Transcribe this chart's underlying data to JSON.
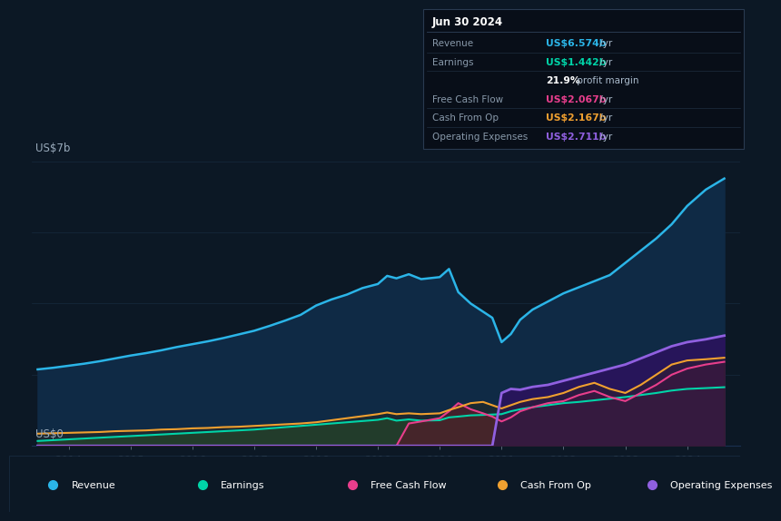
{
  "bg_color": "#0c1825",
  "plot_bg_color": "#0c1825",
  "grid_color": "#1a2e45",
  "title_y_label": "US$7b",
  "title_y_label_bottom": "US$0",
  "x_ticks": [
    2014,
    2015,
    2016,
    2017,
    2018,
    2019,
    2020,
    2021,
    2022,
    2023,
    2024
  ],
  "ylim": [
    0,
    7.5
  ],
  "xlim": [
    2013.4,
    2024.85
  ],
  "revenue_color": "#2bb5e8",
  "earnings_color": "#00d4a8",
  "fcf_color": "#e83e8c",
  "cashfromop_color": "#f0a030",
  "opex_color": "#9060e0",
  "legend": [
    {
      "label": "Revenue",
      "color": "#2bb5e8"
    },
    {
      "label": "Earnings",
      "color": "#00d4a8"
    },
    {
      "label": "Free Cash Flow",
      "color": "#e83e8c"
    },
    {
      "label": "Cash From Op",
      "color": "#f0a030"
    },
    {
      "label": "Operating Expenses",
      "color": "#9060e0"
    }
  ],
  "info_box": {
    "date": "Jun 30 2024",
    "rows": [
      {
        "label": "Revenue",
        "value": "US$6.574b",
        "suffix": " /yr",
        "color": "#2bb5e8"
      },
      {
        "label": "Earnings",
        "value": "US$1.442b",
        "suffix": " /yr",
        "color": "#00d4a8"
      },
      {
        "label": "",
        "value": "21.9%",
        "suffix": " profit margin",
        "color": "#ffffff"
      },
      {
        "label": "Free Cash Flow",
        "value": "US$2.067b",
        "suffix": " /yr",
        "color": "#e83e8c"
      },
      {
        "label": "Cash From Op",
        "value": "US$2.167b",
        "suffix": " /yr",
        "color": "#f0a030"
      },
      {
        "label": "Operating Expenses",
        "value": "US$2.711b",
        "suffix": " /yr",
        "color": "#9060e0"
      }
    ]
  },
  "years": [
    2013.5,
    2013.75,
    2014.0,
    2014.25,
    2014.5,
    2014.75,
    2015.0,
    2015.25,
    2015.5,
    2015.75,
    2016.0,
    2016.25,
    2016.5,
    2016.75,
    2017.0,
    2017.25,
    2017.5,
    2017.75,
    2018.0,
    2018.25,
    2018.5,
    2018.75,
    2019.0,
    2019.15,
    2019.3,
    2019.5,
    2019.7,
    2020.0,
    2020.15,
    2020.3,
    2020.5,
    2020.7,
    2020.85,
    2021.0,
    2021.15,
    2021.3,
    2021.5,
    2021.75,
    2022.0,
    2022.25,
    2022.5,
    2022.75,
    2023.0,
    2023.25,
    2023.5,
    2023.75,
    2024.0,
    2024.3,
    2024.6
  ],
  "revenue": [
    1.88,
    1.92,
    1.97,
    2.02,
    2.08,
    2.15,
    2.22,
    2.28,
    2.35,
    2.43,
    2.5,
    2.57,
    2.65,
    2.74,
    2.83,
    2.95,
    3.08,
    3.22,
    3.45,
    3.6,
    3.72,
    3.88,
    3.98,
    4.18,
    4.12,
    4.22,
    4.1,
    4.15,
    4.35,
    3.78,
    3.5,
    3.3,
    3.15,
    2.55,
    2.75,
    3.1,
    3.35,
    3.55,
    3.75,
    3.9,
    4.05,
    4.2,
    4.5,
    4.8,
    5.1,
    5.45,
    5.9,
    6.3,
    6.574
  ],
  "earnings": [
    0.12,
    0.14,
    0.16,
    0.18,
    0.2,
    0.22,
    0.24,
    0.26,
    0.28,
    0.3,
    0.32,
    0.34,
    0.36,
    0.38,
    0.4,
    0.43,
    0.46,
    0.49,
    0.52,
    0.55,
    0.58,
    0.61,
    0.64,
    0.68,
    0.62,
    0.65,
    0.62,
    0.63,
    0.7,
    0.72,
    0.75,
    0.76,
    0.77,
    0.78,
    0.85,
    0.9,
    0.95,
    1.0,
    1.05,
    1.08,
    1.12,
    1.16,
    1.2,
    1.25,
    1.3,
    1.36,
    1.4,
    1.42,
    1.442
  ],
  "free_cash_flow": [
    0.0,
    0.0,
    0.0,
    0.0,
    0.0,
    0.0,
    0.0,
    0.0,
    0.0,
    0.0,
    0.0,
    0.0,
    0.0,
    0.0,
    0.0,
    0.0,
    0.0,
    0.0,
    0.0,
    0.0,
    0.0,
    0.0,
    0.0,
    0.0,
    0.0,
    0.55,
    0.6,
    0.68,
    0.85,
    1.05,
    0.9,
    0.8,
    0.72,
    0.6,
    0.7,
    0.85,
    0.95,
    1.05,
    1.1,
    1.25,
    1.35,
    1.2,
    1.1,
    1.3,
    1.5,
    1.75,
    1.9,
    2.0,
    2.067
  ],
  "cash_from_op": [
    0.3,
    0.31,
    0.32,
    0.33,
    0.34,
    0.36,
    0.37,
    0.38,
    0.4,
    0.41,
    0.43,
    0.44,
    0.46,
    0.47,
    0.49,
    0.51,
    0.53,
    0.55,
    0.58,
    0.63,
    0.68,
    0.73,
    0.78,
    0.82,
    0.78,
    0.8,
    0.78,
    0.8,
    0.88,
    0.95,
    1.05,
    1.08,
    1.0,
    0.92,
    1.0,
    1.08,
    1.15,
    1.2,
    1.3,
    1.45,
    1.55,
    1.4,
    1.3,
    1.5,
    1.75,
    2.0,
    2.1,
    2.13,
    2.167
  ],
  "op_expenses": [
    0.0,
    0.0,
    0.0,
    0.0,
    0.0,
    0.0,
    0.0,
    0.0,
    0.0,
    0.0,
    0.0,
    0.0,
    0.0,
    0.0,
    0.0,
    0.0,
    0.0,
    0.0,
    0.0,
    0.0,
    0.0,
    0.0,
    0.0,
    0.0,
    0.0,
    0.0,
    0.0,
    0.0,
    0.0,
    0.0,
    0.0,
    0.0,
    0.0,
    1.3,
    1.4,
    1.38,
    1.45,
    1.5,
    1.6,
    1.7,
    1.8,
    1.9,
    2.0,
    2.15,
    2.3,
    2.45,
    2.55,
    2.62,
    2.711
  ]
}
